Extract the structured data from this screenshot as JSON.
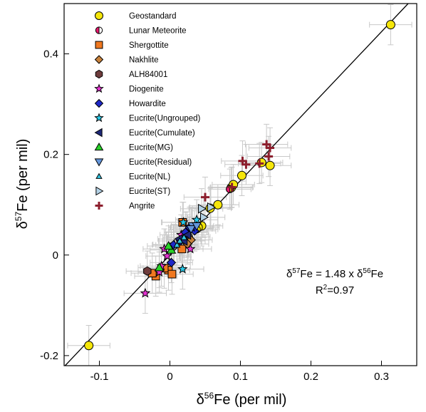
{
  "chart_data": {
    "type": "scatter",
    "xlabel": {
      "pre": "δ",
      "sup": "56",
      "post": "Fe (per mil)"
    },
    "ylabel": {
      "pre": "δ",
      "sup": "57",
      "post": "Fe (per mil)"
    },
    "xlim": [
      -0.15,
      0.35
    ],
    "ylim": [
      -0.22,
      0.5
    ],
    "x_ticks": [
      -0.1,
      0,
      0.1,
      0.2,
      0.3
    ],
    "x_tick_labels": [
      "-0.1",
      "0",
      "0.1",
      "0.2",
      "0.3"
    ],
    "y_ticks": [
      -0.2,
      0,
      0.2,
      0.4
    ],
    "y_tick_labels": [
      "-0.2",
      "0",
      "0.2",
      "0.4"
    ],
    "grid": false,
    "legend_position": "top-left",
    "fit_line": {
      "slope": 1.48,
      "intercept": 0
    },
    "annotation": {
      "line1": {
        "pre": "δ",
        "sup1": "57",
        "mid": "Fe = 1.48 x δ",
        "sup2": "56",
        "post": "Fe"
      },
      "line2": {
        "pre": "R",
        "sup": "2",
        "post": "=0.97"
      }
    },
    "error_bar_color": "#c8c8c8",
    "series": [
      {
        "name": "Geostandard",
        "marker": "circle",
        "color": "#f5e60a",
        "points": [
          [
            -0.115,
            -0.18
          ],
          [
            0.313,
            0.458
          ],
          [
            0.142,
            0.178
          ],
          [
            0.13,
            0.184
          ],
          [
            0.102,
            0.158
          ],
          [
            0.087,
            0.134
          ],
          [
            0.09,
            0.14
          ],
          [
            0.068,
            0.1
          ],
          [
            0.057,
            0.093
          ],
          [
            0.045,
            0.058
          ],
          [
            0.04,
            0.055
          ]
        ]
      },
      {
        "name": "Lunar Meteorite",
        "marker": "half-circle",
        "color": "#e6176b",
        "points": [
          [
            0.085,
            0.131
          ],
          [
            0.038,
            0.051
          ],
          [
            0.027,
            0.036
          ]
        ]
      },
      {
        "name": "Shergottite",
        "marker": "square",
        "color": "#f07820",
        "points": [
          [
            0.018,
            0.065
          ],
          [
            0.017,
            0.012
          ],
          [
            -0.002,
            -0.03
          ],
          [
            -0.008,
            -0.026
          ],
          [
            -0.02,
            -0.042
          ],
          [
            0.003,
            -0.038
          ],
          [
            0.025,
            0.03
          ],
          [
            -0.025,
            -0.036
          ]
        ]
      },
      {
        "name": "Nakhlite",
        "marker": "diamond",
        "color": "#c8823c",
        "points": [
          [
            0.03,
            0.03
          ],
          [
            0.025,
            0.022
          ]
        ]
      },
      {
        "name": "ALH84001",
        "marker": "hexagon",
        "color": "#6e3c3c",
        "points": [
          [
            -0.032,
            -0.032
          ]
        ]
      },
      {
        "name": "Diogenite",
        "marker": "star",
        "color": "#e632d2",
        "points": [
          [
            -0.035,
            -0.076
          ],
          [
            -0.015,
            -0.034
          ],
          [
            -0.008,
            0.012
          ],
          [
            0.006,
            0.021
          ],
          [
            0.016,
            0.04
          ],
          [
            -0.004,
            -0.002
          ],
          [
            0.024,
            0.046
          ],
          [
            0.029,
            0.012
          ],
          [
            -0.012,
            -0.022
          ]
        ]
      },
      {
        "name": "Howardite",
        "marker": "diamond",
        "color": "#1e28c8",
        "points": [
          [
            0.005,
            0.02
          ],
          [
            0.015,
            0.028
          ],
          [
            0.035,
            0.048
          ],
          [
            0.002,
            -0.015
          ],
          [
            0.022,
            0.045
          ],
          [
            0.028,
            0.055
          ]
        ]
      },
      {
        "name": "Eucrite(Ungrouped)",
        "marker": "star",
        "color": "#28c8e6",
        "points": [
          [
            0.019,
            0.065
          ],
          [
            0.018,
            -0.028
          ],
          [
            0.031,
            0.055
          ],
          [
            0.038,
            0.07
          ]
        ]
      },
      {
        "name": "Eucrite(Cumulate)",
        "marker": "tri-left",
        "color": "#1e2878",
        "points": [
          [
            0.013,
            0.032
          ],
          [
            0.025,
            0.04
          ],
          [
            0.02,
            0.028
          ]
        ]
      },
      {
        "name": "Eucrite(MG)",
        "marker": "tri-up",
        "color": "#28d228",
        "points": [
          [
            0.002,
            0.01
          ],
          [
            -0.002,
            0.018
          ],
          [
            -0.015,
            -0.025
          ]
        ]
      },
      {
        "name": "Eucrite(Residual)",
        "marker": "tri-down",
        "color": "#6496dc",
        "points": [
          [
            0.032,
            0.058
          ],
          [
            0.03,
            0.052
          ],
          [
            0.038,
            0.058
          ]
        ]
      },
      {
        "name": "Eucrite(NL)",
        "marker": "tri-up-small",
        "color": "#32c8e6",
        "points": [
          [
            0.01,
            0.02
          ],
          [
            0.014,
            0.028
          ],
          [
            0.02,
            0.035
          ]
        ]
      },
      {
        "name": "Eucrite(ST)",
        "marker": "tri-right",
        "color": "#b4d2e6",
        "points": [
          [
            0.045,
            0.092
          ],
          [
            0.058,
            0.095
          ],
          [
            0.048,
            0.075
          ]
        ]
      },
      {
        "name": "Angrite",
        "marker": "plus",
        "color": "#8c1e2d",
        "points": [
          [
            0.137,
            0.22
          ],
          [
            0.142,
            0.213
          ],
          [
            0.14,
            0.196
          ],
          [
            0.127,
            0.182
          ],
          [
            0.108,
            0.18
          ],
          [
            0.103,
            0.187
          ],
          [
            0.05,
            0.115
          ],
          [
            0.088,
            0.135
          ]
        ]
      }
    ]
  }
}
